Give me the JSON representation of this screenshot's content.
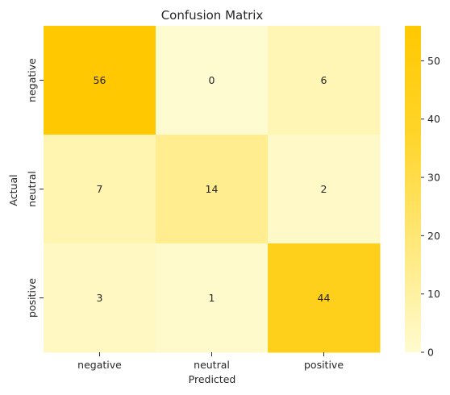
{
  "chart_data": {
    "type": "heatmap",
    "title": "Confusion Matrix",
    "xlabel": "Predicted",
    "ylabel": "Actual",
    "x_categories": [
      "negative",
      "neutral",
      "positive"
    ],
    "y_categories": [
      "negative",
      "neutral",
      "positive"
    ],
    "values": [
      [
        56,
        0,
        6
      ],
      [
        7,
        14,
        2
      ],
      [
        3,
        1,
        44
      ]
    ],
    "colorbar": {
      "min": 0,
      "max": 56,
      "ticks": [
        0,
        10,
        20,
        30,
        40,
        50
      ],
      "colors": [
        "#fffbd0",
        "#ffe87a",
        "#ffd52a",
        "#ffc800"
      ]
    },
    "grid": false,
    "legend": "colorbar-right"
  }
}
